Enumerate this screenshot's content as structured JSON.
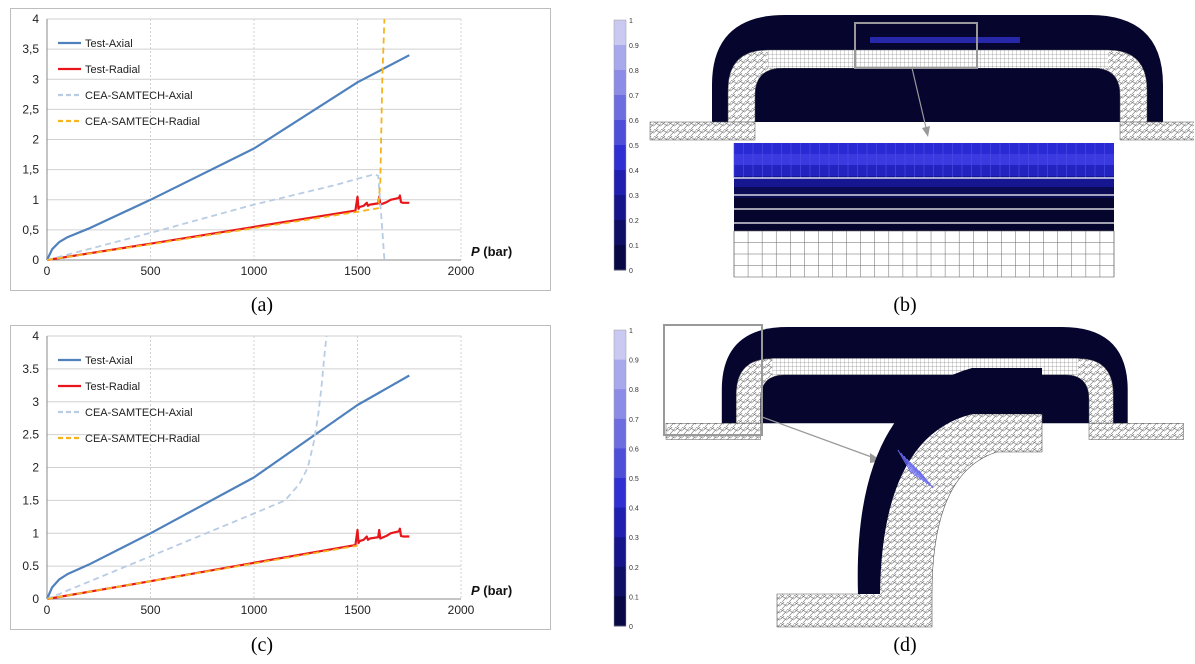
{
  "captions": {
    "a": "(a)",
    "b": "(b)",
    "c": "(c)",
    "d": "(d)"
  },
  "colorbar": {
    "ticks": [
      "1",
      "0.9",
      "0.8",
      "0.7",
      "0.6",
      "0.5",
      "0.4",
      "0.3",
      "0.2",
      "0.1",
      "0"
    ],
    "colors": [
      "#c9c9f2",
      "#a8a8ec",
      "#8c8ce6",
      "#6d6de0",
      "#4e4ed9",
      "#2f2fd2",
      "#1f1fb0",
      "#16168a",
      "#0f0f66",
      "#080845",
      "#02022a"
    ]
  },
  "colors": {
    "test_axial": "#4f81bd",
    "test_radial": "#e8161b",
    "cea_axial": "#b8cce4",
    "cea_radial": "#f5b41e",
    "mesh_dark": "#05052e"
  },
  "chart_data": [
    {
      "type": "line",
      "panel": "a",
      "xlabel_italic": "P",
      "xlabel": "(bar)",
      "xlim": [
        0,
        2000
      ],
      "ylim": [
        0,
        4
      ],
      "xticks": [
        0,
        500,
        1000,
        1500,
        2000
      ],
      "yticks": [
        0,
        0.5,
        1,
        1.5,
        2,
        2.5,
        3,
        3.5,
        4
      ],
      "ytick_labels": [
        "0",
        "0,5",
        "1",
        "1,5",
        "2",
        "2,5",
        "3",
        "3,5",
        "4"
      ],
      "legend": "top-left",
      "grid": true,
      "series": [
        {
          "name": "Test-Axial",
          "style": "solid",
          "color": "#4f81bd",
          "x": [
            0,
            25,
            60,
            100,
            200,
            500,
            1000,
            1500,
            1750
          ],
          "y": [
            0,
            0.18,
            0.3,
            0.38,
            0.52,
            1.0,
            1.85,
            2.95,
            3.4
          ]
        },
        {
          "name": "Test-Radial",
          "style": "solid",
          "color": "#e8161b",
          "x": [
            0,
            500,
            1000,
            1490,
            1500,
            1505,
            1510,
            1530,
            1545,
            1550,
            1560,
            1600,
            1605,
            1610,
            1640,
            1660,
            1700,
            1705,
            1710,
            1720,
            1750
          ],
          "y": [
            0,
            0.27,
            0.55,
            0.82,
            1.05,
            0.85,
            0.88,
            0.9,
            0.95,
            0.9,
            0.92,
            0.94,
            1.05,
            0.92,
            0.96,
            1.0,
            1.03,
            1.07,
            0.96,
            0.95,
            0.95
          ]
        },
        {
          "name": "CEA-SAMTECH-Axial",
          "style": "dashed",
          "color": "#b8cce4",
          "x": [
            0,
            500,
            1000,
            1400,
            1500,
            1580,
            1600,
            1620,
            1630
          ],
          "y": [
            0,
            0.45,
            0.92,
            1.25,
            1.35,
            1.42,
            1.4,
            0.5,
            0
          ]
        },
        {
          "name": "CEA-SAMTECH-Radial",
          "style": "dashed",
          "color": "#f5b41e",
          "x": [
            0,
            500,
            1000,
            1500,
            1600,
            1610,
            1620,
            1630
          ],
          "y": [
            0,
            0.26,
            0.53,
            0.8,
            0.86,
            1.3,
            3.0,
            4.0
          ]
        }
      ]
    },
    {
      "type": "line",
      "panel": "c",
      "xlabel_italic": "P",
      "xlabel": "(bar)",
      "xlim": [
        0,
        2000
      ],
      "ylim": [
        0,
        4
      ],
      "xticks": [
        0,
        500,
        1000,
        1500,
        2000
      ],
      "yticks": [
        0,
        0.5,
        1,
        1.5,
        2,
        2.5,
        3,
        3.5,
        4
      ],
      "ytick_labels": [
        "0",
        "0.5",
        "1",
        "1.5",
        "2",
        "2.5",
        "3",
        "3.5",
        "4"
      ],
      "legend": "top-left",
      "grid": true,
      "series": [
        {
          "name": "Test-Axial",
          "style": "solid",
          "color": "#4f81bd",
          "x": [
            0,
            25,
            60,
            100,
            200,
            500,
            1000,
            1500,
            1750
          ],
          "y": [
            0,
            0.18,
            0.3,
            0.38,
            0.52,
            1.0,
            1.85,
            2.95,
            3.4
          ]
        },
        {
          "name": "Test-Radial",
          "style": "solid",
          "color": "#e8161b",
          "x": [
            0,
            500,
            1000,
            1490,
            1500,
            1505,
            1510,
            1530,
            1545,
            1550,
            1560,
            1600,
            1605,
            1610,
            1640,
            1660,
            1700,
            1705,
            1710,
            1720,
            1750
          ],
          "y": [
            0,
            0.27,
            0.55,
            0.82,
            1.05,
            0.85,
            0.88,
            0.9,
            0.95,
            0.9,
            0.92,
            0.94,
            1.05,
            0.92,
            0.96,
            1.0,
            1.03,
            1.07,
            0.96,
            0.95,
            0.95
          ]
        },
        {
          "name": "CEA-SAMTECH-Axial",
          "style": "dashed",
          "color": "#b8cce4",
          "x": [
            0,
            500,
            1000,
            1150,
            1220,
            1260,
            1290,
            1310,
            1325,
            1340,
            1350
          ],
          "y": [
            0,
            0.65,
            1.3,
            1.5,
            1.75,
            2.0,
            2.4,
            2.8,
            3.2,
            3.7,
            4.0
          ]
        },
        {
          "name": "CEA-SAMTECH-Radial",
          "style": "dashed",
          "color": "#f5b41e",
          "x": [
            0,
            500,
            1000,
            1500
          ],
          "y": [
            0,
            0.27,
            0.54,
            0.81
          ]
        }
      ]
    }
  ]
}
